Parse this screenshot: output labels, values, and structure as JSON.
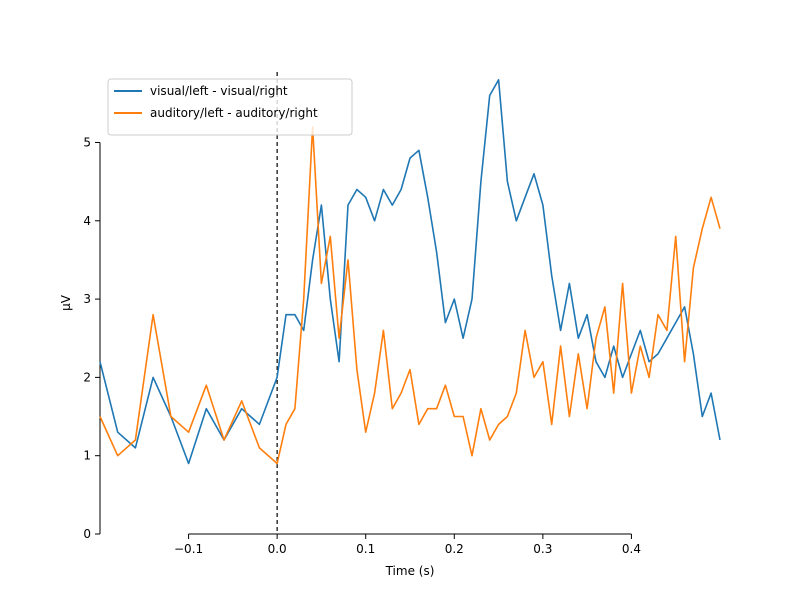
{
  "chart_data": {
    "type": "line",
    "xlabel": "Time (s)",
    "ylabel": "µV",
    "xlim": [
      -0.2,
      0.5
    ],
    "ylim": [
      0,
      5.9
    ],
    "x_ticks": [
      -0.1,
      0.0,
      0.1,
      0.2,
      0.3,
      0.4
    ],
    "x_tick_labels": [
      "−0.1",
      "0.0",
      "0.1",
      "0.2",
      "0.3",
      "0.4"
    ],
    "y_ticks": [
      0,
      1,
      2,
      3,
      4,
      5
    ],
    "y_tick_labels": [
      "0",
      "1",
      "2",
      "3",
      "4",
      "5"
    ],
    "grid": false,
    "legend_position": "top-left",
    "event_marker": {
      "x": 0.0,
      "style": "dashed"
    },
    "series": [
      {
        "name": "visual/left - visual/right",
        "color": "#1f77b4",
        "x": [
          -0.2,
          -0.18,
          -0.16,
          -0.14,
          -0.12,
          -0.1,
          -0.08,
          -0.06,
          -0.04,
          -0.02,
          0.0,
          0.01,
          0.02,
          0.03,
          0.04,
          0.05,
          0.06,
          0.07,
          0.08,
          0.09,
          0.1,
          0.11,
          0.12,
          0.13,
          0.14,
          0.15,
          0.16,
          0.17,
          0.18,
          0.19,
          0.2,
          0.21,
          0.22,
          0.23,
          0.24,
          0.25,
          0.26,
          0.27,
          0.28,
          0.29,
          0.3,
          0.31,
          0.32,
          0.33,
          0.34,
          0.35,
          0.36,
          0.37,
          0.38,
          0.39,
          0.4,
          0.41,
          0.42,
          0.43,
          0.44,
          0.45,
          0.46,
          0.47,
          0.48,
          0.49,
          0.5
        ],
        "y": [
          2.2,
          1.3,
          1.1,
          2.0,
          1.5,
          0.9,
          1.6,
          1.2,
          1.6,
          1.4,
          2.0,
          2.8,
          2.8,
          2.6,
          3.5,
          4.2,
          3.0,
          2.2,
          4.2,
          4.4,
          4.3,
          4.0,
          4.4,
          4.2,
          4.4,
          4.8,
          4.9,
          4.3,
          3.6,
          2.7,
          3.0,
          2.5,
          3.0,
          4.5,
          5.6,
          5.8,
          4.5,
          4.0,
          4.3,
          4.6,
          4.2,
          3.3,
          2.6,
          3.2,
          2.5,
          2.8,
          2.2,
          2.0,
          2.4,
          2.0,
          2.3,
          2.6,
          2.2,
          2.3,
          2.5,
          2.7,
          2.9,
          2.3,
          1.5,
          1.8,
          1.2
        ]
      },
      {
        "name": "auditory/left - auditory/right",
        "color": "#ff7f0e",
        "x": [
          -0.2,
          -0.18,
          -0.16,
          -0.14,
          -0.12,
          -0.1,
          -0.08,
          -0.06,
          -0.04,
          -0.02,
          0.0,
          0.01,
          0.02,
          0.03,
          0.04,
          0.05,
          0.06,
          0.07,
          0.08,
          0.09,
          0.1,
          0.11,
          0.12,
          0.13,
          0.14,
          0.15,
          0.16,
          0.17,
          0.18,
          0.19,
          0.2,
          0.21,
          0.22,
          0.23,
          0.24,
          0.25,
          0.26,
          0.27,
          0.28,
          0.29,
          0.3,
          0.31,
          0.32,
          0.33,
          0.34,
          0.35,
          0.36,
          0.37,
          0.38,
          0.39,
          0.4,
          0.41,
          0.42,
          0.43,
          0.44,
          0.45,
          0.46,
          0.47,
          0.48,
          0.49,
          0.5
        ],
        "y": [
          1.5,
          1.0,
          1.2,
          2.8,
          1.5,
          1.3,
          1.9,
          1.2,
          1.7,
          1.1,
          0.9,
          1.4,
          1.6,
          3.0,
          5.2,
          3.2,
          3.8,
          2.5,
          3.5,
          2.1,
          1.3,
          1.8,
          2.6,
          1.6,
          1.8,
          2.1,
          1.4,
          1.6,
          1.6,
          1.9,
          1.5,
          1.5,
          1.0,
          1.6,
          1.2,
          1.4,
          1.5,
          1.8,
          2.6,
          2.0,
          2.2,
          1.4,
          2.4,
          1.5,
          2.3,
          1.6,
          2.5,
          2.9,
          1.8,
          3.2,
          1.8,
          2.4,
          2.0,
          2.8,
          2.6,
          3.8,
          2.2,
          3.4,
          3.9,
          4.3,
          3.9
        ]
      }
    ]
  }
}
